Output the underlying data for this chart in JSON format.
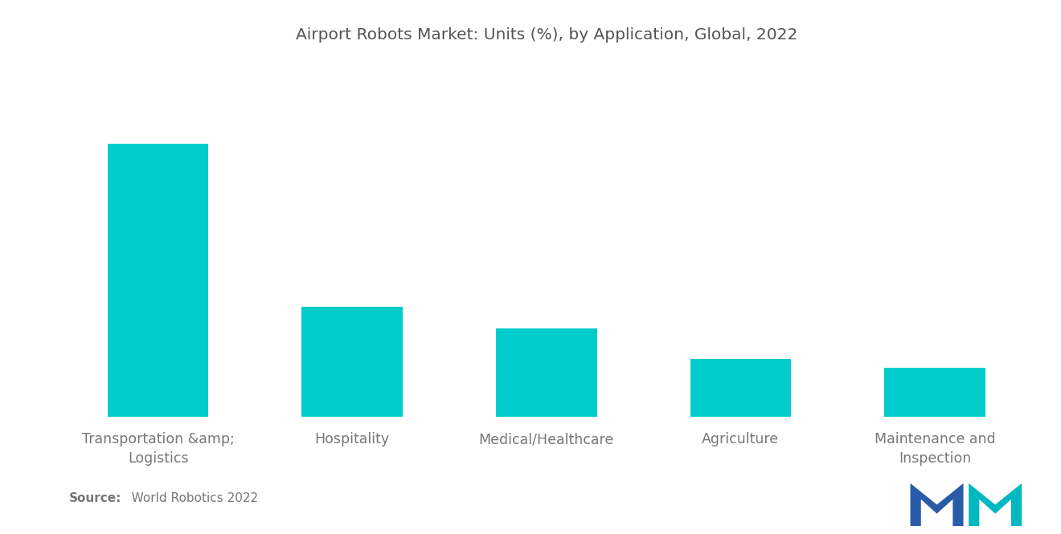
{
  "title": "Airport Robots Market: Units (%), by Application, Global, 2022",
  "categories": [
    "Transportation &amp;;\nLogistics",
    "Hospitality",
    "Medical/Healthcare",
    "Agriculture",
    "Maintenance and\nInspection"
  ],
  "values": [
    62,
    25,
    20,
    13,
    11
  ],
  "bar_color": "#00CCCC",
  "background_color": "#ffffff",
  "title_color": "#555555",
  "label_color": "#777777",
  "title_fontsize": 14.5,
  "label_fontsize": 12.5,
  "source_bold": "Source:",
  "source_rest": "   World Robotics 2022",
  "source_fontsize": 11,
  "logo_blue": "#2A5BA8",
  "logo_teal": "#00B8C0",
  "ylim_max": 80
}
